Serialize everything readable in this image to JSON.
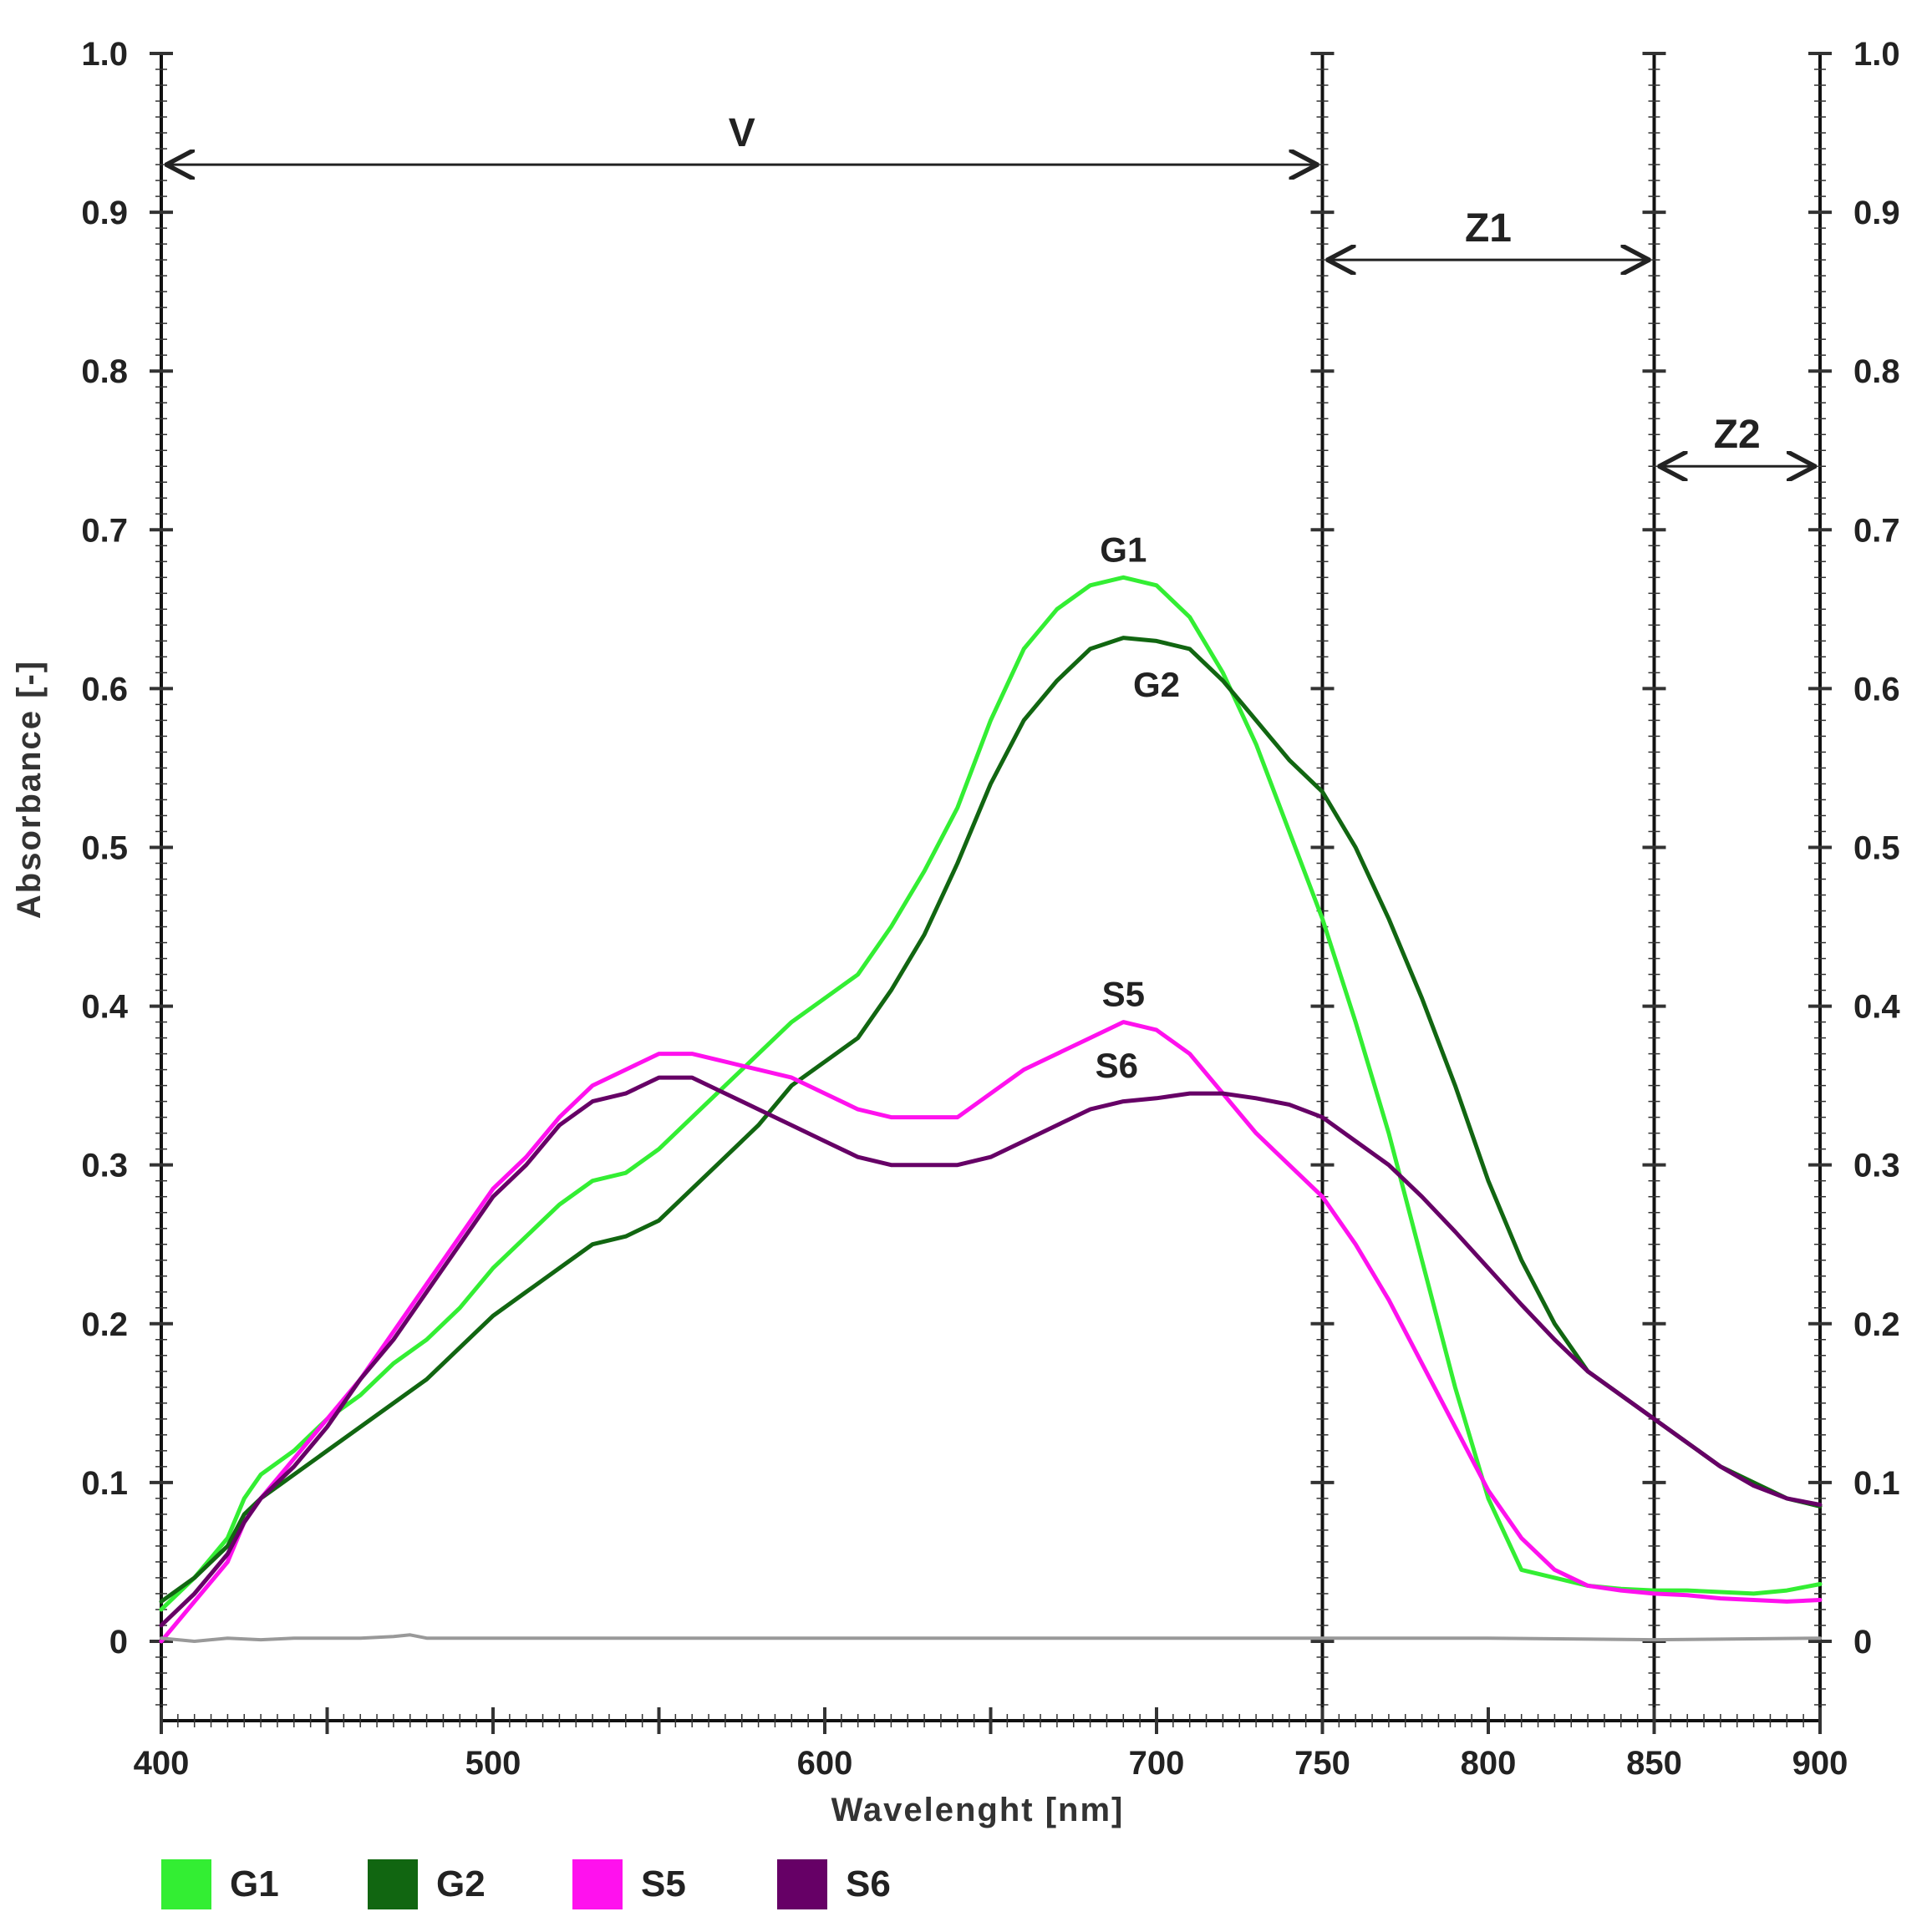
{
  "chart_data": {
    "type": "line",
    "xlabel": "Wavelenght [nm]",
    "ylabel": "Absorbance [-]",
    "xlim": [
      400,
      900
    ],
    "ylim": [
      -0.05,
      1.0
    ],
    "x_ticks": [
      400,
      500,
      600,
      700,
      750,
      800,
      850,
      900
    ],
    "x_tick_labels": [
      "400",
      "500",
      "600",
      "700",
      "750",
      "800",
      "850",
      "900"
    ],
    "y_ticks": [
      0,
      0.1,
      0.2,
      0.3,
      0.4,
      0.5,
      0.6,
      0.7,
      0.8,
      0.9,
      1.0
    ],
    "y_tick_labels": [
      "0",
      "0.1",
      "0.2",
      "0.3",
      "0.4",
      "0.5",
      "0.6",
      "0.7",
      "0.8",
      "0.9",
      "1.0"
    ],
    "vertical_dividers": [
      750,
      850,
      900
    ],
    "regions": [
      {
        "label": "V",
        "from": 400,
        "to": 750,
        "y": 0.93
      },
      {
        "label": "Z1",
        "from": 750,
        "to": 850,
        "y": 0.87
      },
      {
        "label": "Z2",
        "from": 850,
        "to": 900,
        "y": 0.74
      }
    ],
    "series": [
      {
        "name": "G1",
        "color": "#33ee33",
        "label_at": [
          690,
          0.68
        ],
        "x": [
          400,
          410,
          420,
          425,
          430,
          440,
          450,
          460,
          470,
          480,
          490,
          500,
          510,
          520,
          530,
          540,
          550,
          560,
          570,
          580,
          590,
          600,
          610,
          620,
          630,
          640,
          650,
          660,
          670,
          680,
          690,
          700,
          710,
          720,
          730,
          740,
          750,
          760,
          770,
          780,
          790,
          800,
          810,
          820,
          830,
          840,
          850,
          860,
          870,
          880,
          890,
          900
        ],
        "values": [
          0.02,
          0.04,
          0.065,
          0.09,
          0.105,
          0.12,
          0.14,
          0.155,
          0.175,
          0.19,
          0.21,
          0.235,
          0.255,
          0.275,
          0.29,
          0.295,
          0.31,
          0.33,
          0.35,
          0.37,
          0.39,
          0.405,
          0.42,
          0.45,
          0.485,
          0.525,
          0.58,
          0.625,
          0.65,
          0.665,
          0.67,
          0.665,
          0.645,
          0.61,
          0.565,
          0.51,
          0.455,
          0.39,
          0.32,
          0.24,
          0.16,
          0.09,
          0.045,
          0.04,
          0.035,
          0.033,
          0.032,
          0.032,
          0.031,
          0.03,
          0.032,
          0.036
        ]
      },
      {
        "name": "G2",
        "color": "#116611",
        "label_at": [
          700,
          0.595
        ],
        "x": [
          400,
          410,
          420,
          425,
          430,
          440,
          450,
          460,
          470,
          480,
          490,
          500,
          510,
          520,
          530,
          540,
          550,
          560,
          570,
          580,
          590,
          600,
          610,
          620,
          630,
          640,
          650,
          660,
          670,
          680,
          690,
          700,
          710,
          720,
          730,
          740,
          750,
          760,
          770,
          780,
          790,
          800,
          810,
          820,
          830,
          840,
          850,
          860,
          870,
          880,
          890,
          900
        ],
        "values": [
          0.025,
          0.04,
          0.06,
          0.08,
          0.09,
          0.105,
          0.12,
          0.135,
          0.15,
          0.165,
          0.185,
          0.205,
          0.22,
          0.235,
          0.25,
          0.255,
          0.265,
          0.285,
          0.305,
          0.325,
          0.35,
          0.365,
          0.38,
          0.41,
          0.445,
          0.49,
          0.54,
          0.58,
          0.605,
          0.625,
          0.632,
          0.63,
          0.625,
          0.605,
          0.58,
          0.555,
          0.535,
          0.5,
          0.455,
          0.405,
          0.35,
          0.29,
          0.24,
          0.2,
          0.17,
          0.155,
          0.14,
          0.125,
          0.11,
          0.1,
          0.09,
          0.085
        ]
      },
      {
        "name": "S5",
        "color": "#ff11ee",
        "label_at": [
          690,
          0.4
        ],
        "x": [
          400,
          410,
          420,
          425,
          430,
          440,
          450,
          460,
          470,
          480,
          490,
          500,
          510,
          520,
          530,
          540,
          550,
          560,
          570,
          580,
          590,
          600,
          610,
          620,
          630,
          640,
          650,
          660,
          670,
          680,
          690,
          700,
          710,
          720,
          730,
          740,
          750,
          760,
          770,
          780,
          790,
          800,
          810,
          820,
          830,
          840,
          850,
          860,
          870,
          880,
          890,
          900
        ],
        "values": [
          0.0,
          0.025,
          0.05,
          0.075,
          0.09,
          0.115,
          0.14,
          0.165,
          0.195,
          0.225,
          0.255,
          0.285,
          0.305,
          0.33,
          0.35,
          0.36,
          0.37,
          0.37,
          0.365,
          0.36,
          0.355,
          0.345,
          0.335,
          0.33,
          0.33,
          0.33,
          0.345,
          0.36,
          0.37,
          0.38,
          0.39,
          0.385,
          0.37,
          0.345,
          0.32,
          0.3,
          0.28,
          0.25,
          0.215,
          0.175,
          0.135,
          0.095,
          0.065,
          0.045,
          0.035,
          0.032,
          0.03,
          0.029,
          0.027,
          0.026,
          0.025,
          0.026
        ]
      },
      {
        "name": "S6",
        "color": "#660066",
        "label_at": [
          688,
          0.355
        ],
        "x": [
          400,
          410,
          420,
          425,
          430,
          440,
          450,
          460,
          470,
          480,
          490,
          500,
          510,
          520,
          530,
          540,
          550,
          560,
          570,
          580,
          590,
          600,
          610,
          620,
          630,
          640,
          650,
          660,
          670,
          680,
          690,
          700,
          710,
          720,
          730,
          740,
          750,
          760,
          770,
          780,
          790,
          800,
          810,
          820,
          830,
          840,
          850,
          860,
          870,
          880,
          890,
          900
        ],
        "values": [
          0.01,
          0.03,
          0.055,
          0.075,
          0.09,
          0.11,
          0.135,
          0.165,
          0.19,
          0.22,
          0.25,
          0.28,
          0.3,
          0.325,
          0.34,
          0.345,
          0.355,
          0.355,
          0.345,
          0.335,
          0.325,
          0.315,
          0.305,
          0.3,
          0.3,
          0.3,
          0.305,
          0.315,
          0.325,
          0.335,
          0.34,
          0.342,
          0.345,
          0.345,
          0.342,
          0.338,
          0.33,
          0.315,
          0.3,
          0.28,
          0.258,
          0.235,
          0.212,
          0.19,
          0.17,
          0.155,
          0.14,
          0.125,
          0.11,
          0.098,
          0.09,
          0.086
        ]
      },
      {
        "name": "baseline",
        "color": "#999999",
        "show_in_legend": false,
        "x": [
          400,
          410,
          420,
          430,
          440,
          450,
          460,
          470,
          475,
          480,
          490,
          500,
          550,
          600,
          650,
          700,
          750,
          800,
          850,
          900
        ],
        "values": [
          0.002,
          0.0,
          0.002,
          0.001,
          0.002,
          0.002,
          0.002,
          0.003,
          0.004,
          0.002,
          0.002,
          0.002,
          0.002,
          0.002,
          0.002,
          0.002,
          0.002,
          0.002,
          0.001,
          0.002
        ]
      }
    ],
    "legend": [
      {
        "label": "G1",
        "color": "#33ee33"
      },
      {
        "label": "G2",
        "color": "#116611"
      },
      {
        "label": "S5",
        "color": "#ff11ee"
      },
      {
        "label": "S6",
        "color": "#660066"
      }
    ]
  }
}
